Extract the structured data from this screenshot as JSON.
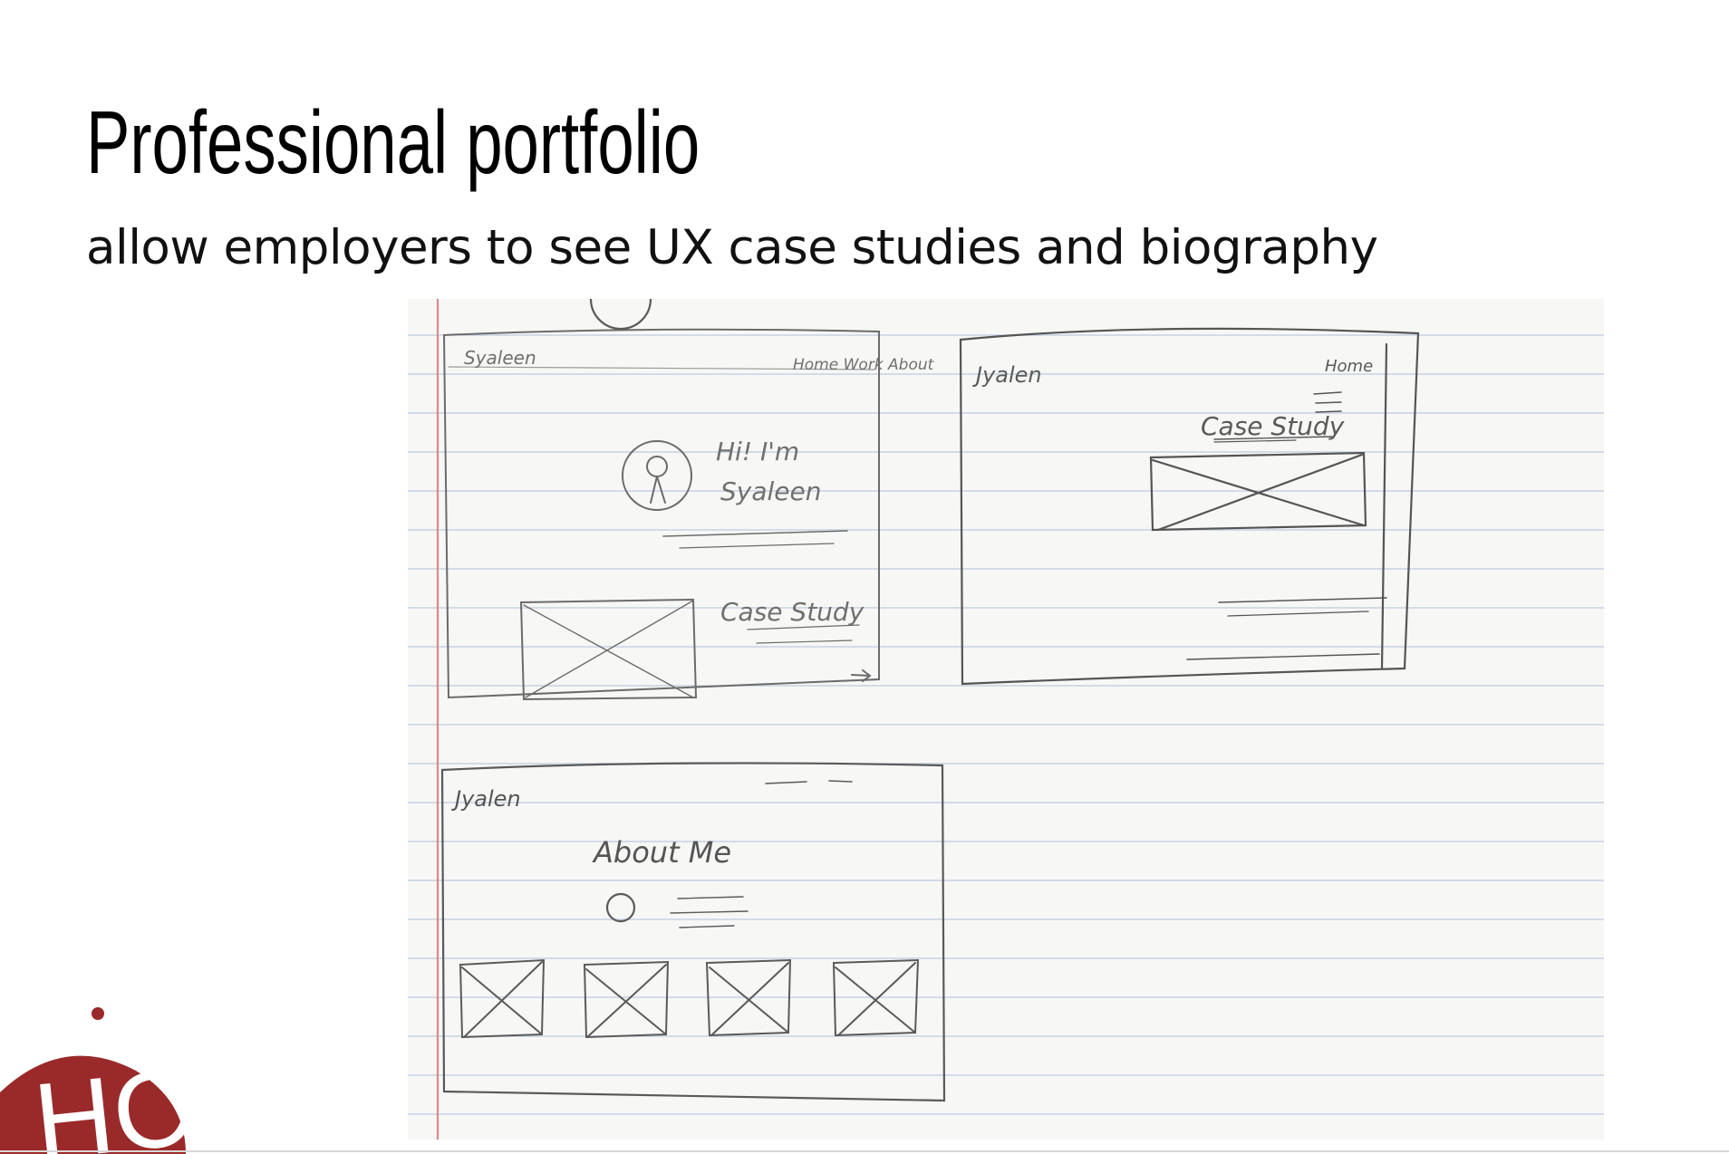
{
  "slide": {
    "title": "Professional portfolio",
    "subtitle": "allow employers to see UX case studies and biography"
  },
  "sketch": {
    "wireframe_home": {
      "brand": "Syaleen",
      "nav": "Home  Work  About",
      "greeting_line1": "Hi! I'm",
      "greeting_line2": "Syaleen",
      "section": "Case Study"
    },
    "wireframe_case": {
      "brand": "Jyalen",
      "nav": "Home",
      "section": "Case Study"
    },
    "wireframe_about": {
      "brand": "Jyalen",
      "heading": "About Me"
    }
  },
  "logo": {
    "text": "HCII",
    "color": "#9a2a2a"
  }
}
